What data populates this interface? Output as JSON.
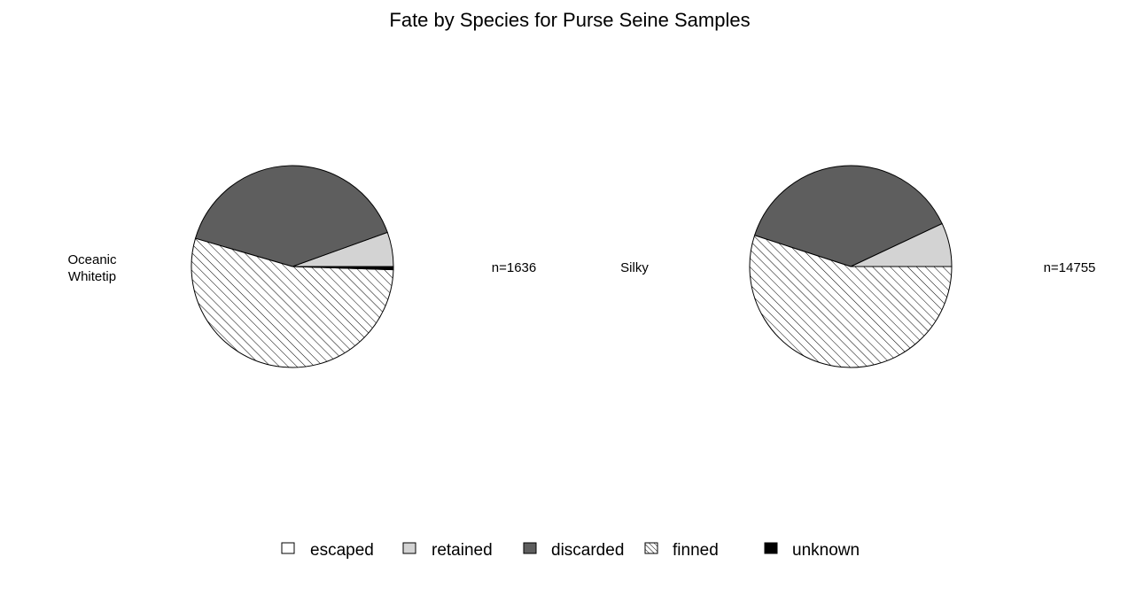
{
  "chart_data": {
    "type": "pie",
    "title": "Fate by Species for Purse Seine Samples",
    "categories": [
      "escaped",
      "retained",
      "discarded",
      "finned",
      "unknown"
    ],
    "pies": [
      {
        "name_lines": [
          "Oceanic",
          "Whitetip"
        ],
        "n_label": "n=1636",
        "values": [
          0.0,
          0.055,
          0.4,
          0.54,
          0.005
        ]
      },
      {
        "name_lines": [
          "Silky"
        ],
        "n_label": "n=14755",
        "values": [
          0.0,
          0.07,
          0.38,
          0.55,
          0.0
        ]
      }
    ],
    "legend": {
      "position": "bottom",
      "items": [
        {
          "label": "escaped",
          "fill": "#ffffff",
          "pattern": "none"
        },
        {
          "label": "retained",
          "fill": "#d3d3d3",
          "pattern": "none"
        },
        {
          "label": "discarded",
          "fill": "#5e5e5e",
          "pattern": "none"
        },
        {
          "label": "finned",
          "fill": "#ffffff",
          "pattern": "hatch"
        },
        {
          "label": "unknown",
          "fill": "#000000",
          "pattern": "none"
        }
      ]
    },
    "colors": {
      "escaped": "#ffffff",
      "retained": "#d3d3d3",
      "discarded": "#5e5e5e",
      "finned_hatch": "#000000",
      "unknown": "#000000",
      "outline": "#000000"
    }
  }
}
